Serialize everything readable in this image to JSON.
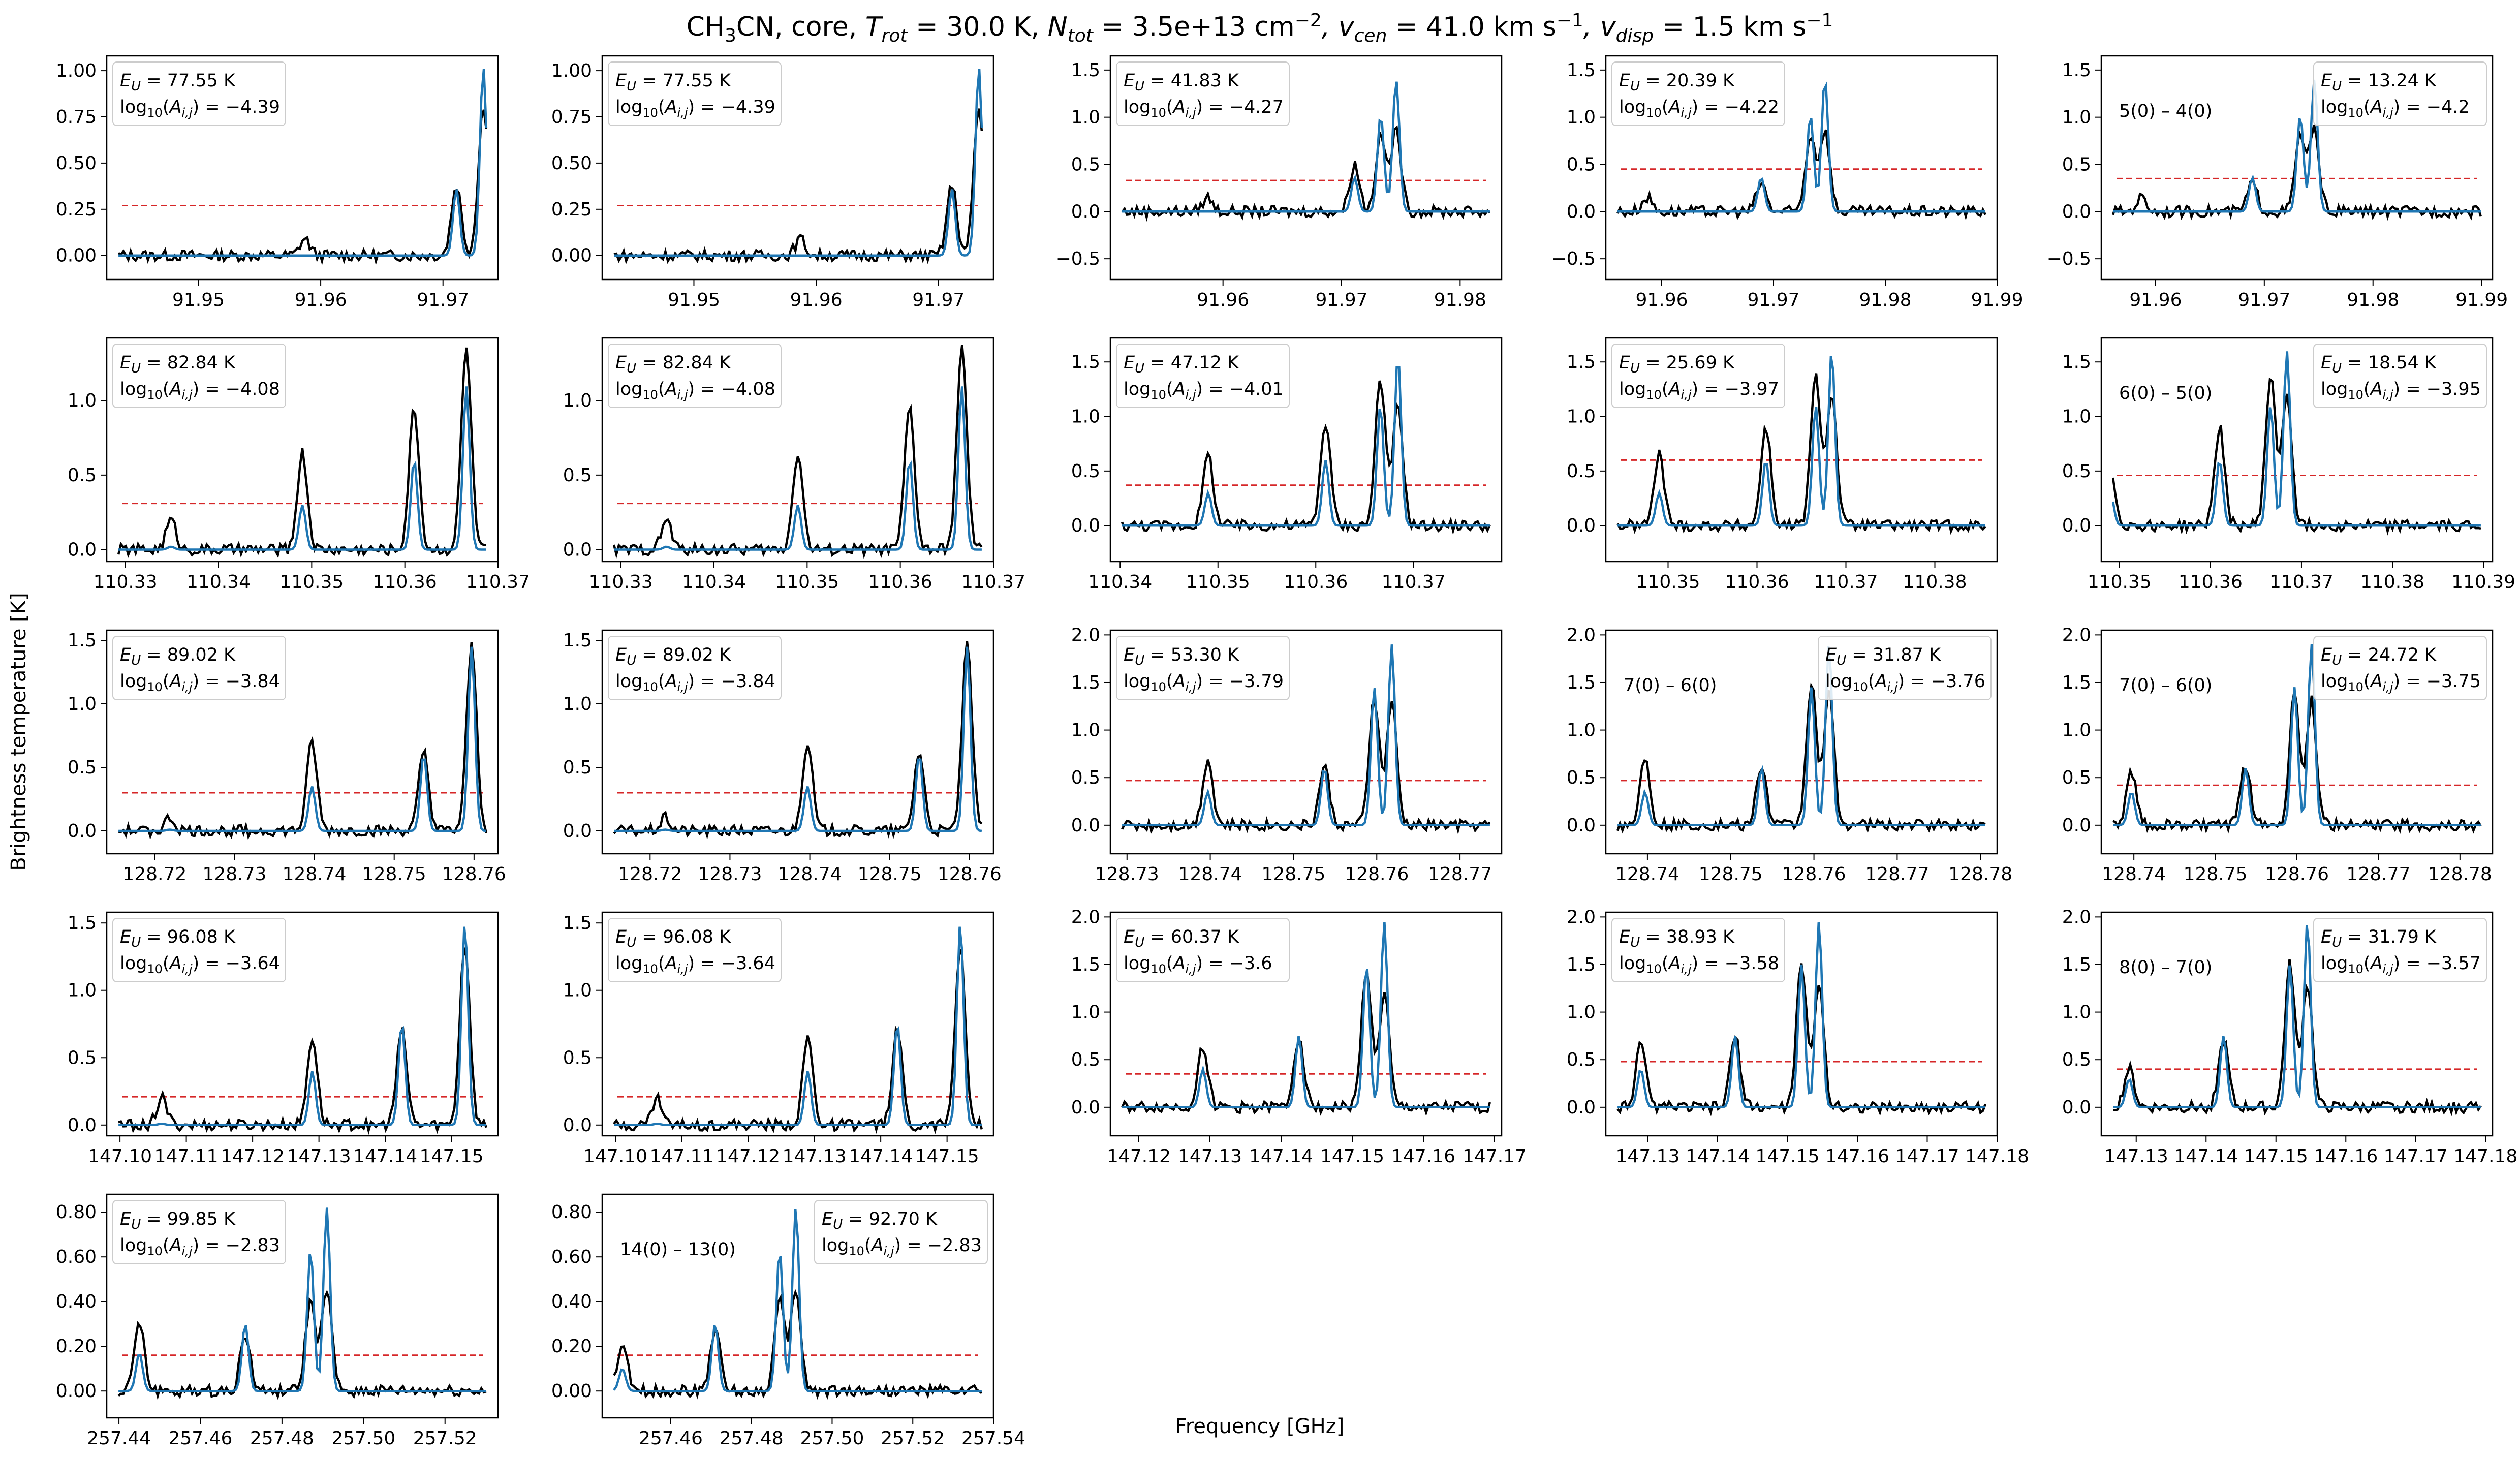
{
  "figure": {
    "title_main": "CH",
    "title_sub3": "3",
    "title_cn": "CN, core, ",
    "title_trot_T": "T",
    "title_trot_sub": "rot",
    "title_trot_val": " = 30.0 K, ",
    "title_ntot_N": "N",
    "title_ntot_sub": "tot",
    "title_ntot_val": " = 3.5e+13 cm",
    "title_ntot_exp": "−2",
    "title_vcen_v": ", v",
    "title_vcen_sub": "cen",
    "title_vcen_val": " = 41.0 km s",
    "title_vcen_exp": "−1",
    "title_vdisp_v": ", v",
    "title_vdisp_sub": "disp",
    "title_vdisp_val": " = 1.5 km s",
    "title_vdisp_exp": "−1",
    "xlabel": "Frequency [GHz]",
    "ylabel": "Brightness temperature [K]"
  },
  "colors": {
    "observed": "#000000",
    "model": "#1f77b4",
    "threshold": "#d62728"
  },
  "chart_data": [
    {
      "type": "line",
      "row": 0,
      "col": 0,
      "xlim": [
        91.9425,
        91.9745
      ],
      "xticks": [
        91.95,
        91.96,
        91.97
      ],
      "ylim": [
        -0.13,
        1.08
      ],
      "yticks": [
        0.0,
        0.25,
        0.5,
        0.75,
        1.0
      ],
      "threshold": 0.27,
      "ann_pos": "left",
      "eu": "77.55 K",
      "loga": "−4.39",
      "transition": "",
      "lines": [
        {
          "f": 91.9587,
          "a": 0.09,
          "m": 0.0
        },
        {
          "f": 91.9711,
          "a": 0.38,
          "m": 0.36
        },
        {
          "f": 91.9733,
          "a": 0.8,
          "m": 1.02
        }
      ]
    },
    {
      "type": "line",
      "row": 0,
      "col": 1,
      "xlim": [
        91.9425,
        91.9745
      ],
      "xticks": [
        91.95,
        91.96,
        91.97
      ],
      "ylim": [
        -0.13,
        1.08
      ],
      "yticks": [
        0.0,
        0.25,
        0.5,
        0.75,
        1.0
      ],
      "threshold": 0.27,
      "ann_pos": "left",
      "eu": "77.55 K",
      "loga": "−4.39",
      "transition": "",
      "lines": [
        {
          "f": 91.9587,
          "a": 0.09,
          "m": 0.0
        },
        {
          "f": 91.9711,
          "a": 0.38,
          "m": 0.36
        },
        {
          "f": 91.9733,
          "a": 0.8,
          "m": 1.02
        }
      ]
    },
    {
      "type": "line",
      "row": 0,
      "col": 2,
      "xlim": [
        91.9505,
        91.9835
      ],
      "xticks": [
        91.95,
        91.96,
        91.97,
        91.98
      ],
      "ylim": [
        -0.72,
        1.65
      ],
      "yticks": [
        -0.5,
        0.0,
        0.5,
        1.0,
        1.5
      ],
      "threshold": 0.33,
      "ann_pos": "left",
      "eu": "41.83 K",
      "loga": "−4.27",
      "transition": "",
      "lines": [
        {
          "f": 91.9587,
          "a": 0.15,
          "m": 0.0
        },
        {
          "f": 91.9711,
          "a": 0.5,
          "m": 0.36
        },
        {
          "f": 91.9733,
          "a": 0.8,
          "m": 1.02
        },
        {
          "f": 91.9746,
          "a": 0.85,
          "m": 1.4
        }
      ]
    },
    {
      "type": "line",
      "row": 0,
      "col": 3,
      "xlim": [
        91.955,
        91.99
      ],
      "xticks": [
        91.96,
        91.97,
        91.98,
        91.99
      ],
      "ylim": [
        -0.72,
        1.65
      ],
      "yticks": [
        -0.5,
        0.0,
        0.5,
        1.0,
        1.5
      ],
      "threshold": 0.45,
      "ann_pos": "left",
      "eu": "20.39 K",
      "loga": "−4.22",
      "transition": "",
      "lines": [
        {
          "f": 91.9587,
          "a": 0.15,
          "m": 0.0
        },
        {
          "f": 91.9689,
          "a": 0.3,
          "m": 0.36
        },
        {
          "f": 91.9733,
          "a": 0.8,
          "m": 1.02
        },
        {
          "f": 91.9746,
          "a": 0.85,
          "m": 1.4
        }
      ]
    },
    {
      "type": "line",
      "row": 0,
      "col": 4,
      "xlim": [
        91.955,
        91.991
      ],
      "xticks": [
        91.96,
        91.97,
        91.98,
        91.99
      ],
      "ylim": [
        -0.72,
        1.65
      ],
      "yticks": [
        -0.5,
        0.0,
        0.5,
        1.0,
        1.5
      ],
      "threshold": 0.35,
      "ann_pos": "right",
      "eu": "13.24 K",
      "loga": "−4.2",
      "transition": "5(0) – 4(0)",
      "lines": [
        {
          "f": 91.9587,
          "a": 0.15,
          "m": 0.0
        },
        {
          "f": 91.9689,
          "a": 0.3,
          "m": 0.36
        },
        {
          "f": 91.9733,
          "a": 0.8,
          "m": 1.02
        },
        {
          "f": 91.9746,
          "a": 0.85,
          "m": 1.4
        }
      ]
    },
    {
      "type": "line",
      "row": 1,
      "col": 0,
      "xlim": [
        110.328,
        110.37
      ],
      "xticks": [
        110.33,
        110.34,
        110.35,
        110.36,
        110.37
      ],
      "ylim": [
        -0.08,
        1.42
      ],
      "yticks": [
        0.0,
        0.5,
        1.0
      ],
      "threshold": 0.31,
      "ann_pos": "left",
      "eu": "82.84 K",
      "loga": "−4.08",
      "transition": "",
      "lines": [
        {
          "f": 110.3349,
          "a": 0.2,
          "m": 0.02
        },
        {
          "f": 110.349,
          "a": 0.65,
          "m": 0.3
        },
        {
          "f": 110.361,
          "a": 0.95,
          "m": 0.6
        },
        {
          "f": 110.3666,
          "a": 1.35,
          "m": 1.1
        }
      ]
    },
    {
      "type": "line",
      "row": 1,
      "col": 1,
      "xlim": [
        110.328,
        110.37
      ],
      "xticks": [
        110.33,
        110.34,
        110.35,
        110.36,
        110.37
      ],
      "ylim": [
        -0.08,
        1.42
      ],
      "yticks": [
        0.0,
        0.5,
        1.0
      ],
      "threshold": 0.31,
      "ann_pos": "left",
      "eu": "82.84 K",
      "loga": "−4.08",
      "transition": "",
      "lines": [
        {
          "f": 110.3349,
          "a": 0.2,
          "m": 0.02
        },
        {
          "f": 110.349,
          "a": 0.65,
          "m": 0.3
        },
        {
          "f": 110.361,
          "a": 0.95,
          "m": 0.6
        },
        {
          "f": 110.3666,
          "a": 1.35,
          "m": 1.1
        }
      ]
    },
    {
      "type": "line",
      "row": 1,
      "col": 2,
      "xlim": [
        110.339,
        110.379
      ],
      "xticks": [
        110.34,
        110.35,
        110.36,
        110.37,
        110.38
      ],
      "ylim": [
        -0.33,
        1.72
      ],
      "yticks": [
        0.0,
        0.5,
        1.0,
        1.5
      ],
      "threshold": 0.37,
      "ann_pos": "left",
      "eu": "47.12 K",
      "loga": "−4.01",
      "transition": "",
      "lines": [
        {
          "f": 110.349,
          "a": 0.65,
          "m": 0.3
        },
        {
          "f": 110.361,
          "a": 0.95,
          "m": 0.6
        },
        {
          "f": 110.3666,
          "a": 1.35,
          "m": 1.1
        },
        {
          "f": 110.3684,
          "a": 1.1,
          "m": 1.55
        }
      ]
    },
    {
      "type": "line",
      "row": 1,
      "col": 3,
      "xlim": [
        110.343,
        110.387
      ],
      "xticks": [
        110.35,
        110.36,
        110.37,
        110.38
      ],
      "ylim": [
        -0.33,
        1.72
      ],
      "yticks": [
        0.0,
        0.5,
        1.0,
        1.5
      ],
      "threshold": 0.6,
      "ann_pos": "left",
      "eu": "25.69 K",
      "loga": "−3.97",
      "transition": "",
      "lines": [
        {
          "f": 110.349,
          "a": 0.65,
          "m": 0.3
        },
        {
          "f": 110.361,
          "a": 0.9,
          "m": 0.6
        },
        {
          "f": 110.3666,
          "a": 1.35,
          "m": 1.1
        },
        {
          "f": 110.3684,
          "a": 1.2,
          "m": 1.6
        }
      ]
    },
    {
      "type": "line",
      "row": 1,
      "col": 4,
      "xlim": [
        110.348,
        110.391
      ],
      "xticks": [
        110.35,
        110.36,
        110.37,
        110.38,
        110.39
      ],
      "ylim": [
        -0.33,
        1.72
      ],
      "yticks": [
        0.0,
        0.5,
        1.0,
        1.5
      ],
      "threshold": 0.46,
      "ann_pos": "right",
      "eu": "18.54 K",
      "loga": "−3.95",
      "transition": "6(0) – 5(0)",
      "lines": [
        {
          "f": 110.349,
          "a": 0.5,
          "m": 0.3
        },
        {
          "f": 110.361,
          "a": 0.9,
          "m": 0.6
        },
        {
          "f": 110.3666,
          "a": 1.35,
          "m": 1.1
        },
        {
          "f": 110.3684,
          "a": 1.2,
          "m": 1.6
        }
      ]
    },
    {
      "type": "line",
      "row": 2,
      "col": 0,
      "xlim": [
        128.714,
        128.763
      ],
      "xticks": [
        128.72,
        128.73,
        128.74,
        128.75,
        128.76
      ],
      "ylim": [
        -0.18,
        1.58
      ],
      "yticks": [
        0.0,
        0.5,
        1.0,
        1.5
      ],
      "threshold": 0.3,
      "ann_pos": "left",
      "eu": "89.02 K",
      "loga": "−3.84",
      "transition": "",
      "lines": [
        {
          "f": 128.7219,
          "a": 0.1,
          "m": 0.01
        },
        {
          "f": 128.7397,
          "a": 0.7,
          "m": 0.35
        },
        {
          "f": 128.7537,
          "a": 0.62,
          "m": 0.6
        },
        {
          "f": 128.7597,
          "a": 1.45,
          "m": 1.45
        }
      ]
    },
    {
      "type": "line",
      "row": 2,
      "col": 1,
      "xlim": [
        128.714,
        128.763
      ],
      "xticks": [
        128.72,
        128.73,
        128.74,
        128.75,
        128.76
      ],
      "ylim": [
        -0.18,
        1.58
      ],
      "yticks": [
        0.0,
        0.5,
        1.0,
        1.5
      ],
      "threshold": 0.3,
      "ann_pos": "left",
      "eu": "89.02 K",
      "loga": "−3.84",
      "transition": "",
      "lines": [
        {
          "f": 128.7219,
          "a": 0.1,
          "m": 0.01
        },
        {
          "f": 128.7397,
          "a": 0.7,
          "m": 0.35
        },
        {
          "f": 128.7537,
          "a": 0.62,
          "m": 0.6
        },
        {
          "f": 128.7597,
          "a": 1.45,
          "m": 1.45
        }
      ]
    },
    {
      "type": "line",
      "row": 2,
      "col": 2,
      "xlim": [
        128.728,
        128.775
      ],
      "xticks": [
        128.73,
        128.74,
        128.75,
        128.76,
        128.77
      ],
      "ylim": [
        -0.3,
        2.05
      ],
      "yticks": [
        0.0,
        0.5,
        1.0,
        1.5,
        2.0
      ],
      "threshold": 0.47,
      "ann_pos": "left",
      "eu": "53.30 K",
      "loga": "−3.79",
      "transition": "",
      "lines": [
        {
          "f": 128.7397,
          "a": 0.7,
          "m": 0.35
        },
        {
          "f": 128.7537,
          "a": 0.62,
          "m": 0.6
        },
        {
          "f": 128.7597,
          "a": 1.35,
          "m": 1.45
        },
        {
          "f": 128.7618,
          "a": 1.3,
          "m": 1.9
        }
      ]
    },
    {
      "type": "line",
      "row": 2,
      "col": 3,
      "xlim": [
        128.735,
        128.782
      ],
      "xticks": [
        128.74,
        128.75,
        128.76,
        128.77,
        128.78
      ],
      "ylim": [
        -0.3,
        2.05
      ],
      "yticks": [
        0.0,
        0.5,
        1.0,
        1.5,
        2.0
      ],
      "threshold": 0.47,
      "ann_pos": "right",
      "eu": "31.87 K",
      "loga": "−3.76",
      "transition": "7(0) – 6(0)",
      "lines": [
        {
          "f": 128.7397,
          "a": 0.7,
          "m": 0.35
        },
        {
          "f": 128.7537,
          "a": 0.62,
          "m": 0.6
        },
        {
          "f": 128.7597,
          "a": 1.5,
          "m": 1.45
        },
        {
          "f": 128.7618,
          "a": 1.4,
          "m": 1.9
        }
      ]
    },
    {
      "type": "line",
      "row": 2,
      "col": 4,
      "xlim": [
        128.736,
        128.784
      ],
      "xticks": [
        128.74,
        128.75,
        128.76,
        128.77,
        128.78
      ],
      "ylim": [
        -0.3,
        2.05
      ],
      "yticks": [
        0.0,
        0.5,
        1.0,
        1.5,
        2.0
      ],
      "threshold": 0.42,
      "ann_pos": "right",
      "eu": "24.72 K",
      "loga": "−3.75",
      "transition": "7(0) – 6(0)",
      "lines": [
        {
          "f": 128.7397,
          "a": 0.55,
          "m": 0.35
        },
        {
          "f": 128.7537,
          "a": 0.62,
          "m": 0.6
        },
        {
          "f": 128.7597,
          "a": 1.4,
          "m": 1.45
        },
        {
          "f": 128.7618,
          "a": 1.3,
          "m": 1.9
        }
      ]
    },
    {
      "type": "line",
      "row": 3,
      "col": 0,
      "xlim": [
        147.098,
        147.157
      ],
      "xticks": [
        147.1,
        147.11,
        147.12,
        147.13,
        147.14,
        147.15
      ],
      "ylim": [
        -0.08,
        1.58
      ],
      "yticks": [
        0.0,
        0.5,
        1.0,
        1.5
      ],
      "threshold": 0.21,
      "ann_pos": "left",
      "eu": "96.08 K",
      "loga": "−3.64",
      "transition": "",
      "lines": [
        {
          "f": 147.1063,
          "a": 0.2,
          "m": 0.01
        },
        {
          "f": 147.129,
          "a": 0.65,
          "m": 0.4
        },
        {
          "f": 147.1425,
          "a": 0.7,
          "m": 0.75
        },
        {
          "f": 147.152,
          "a": 1.35,
          "m": 1.5
        }
      ]
    },
    {
      "type": "line",
      "row": 3,
      "col": 1,
      "xlim": [
        147.098,
        147.157
      ],
      "xticks": [
        147.1,
        147.11,
        147.12,
        147.13,
        147.14,
        147.15
      ],
      "ylim": [
        -0.08,
        1.58
      ],
      "yticks": [
        0.0,
        0.5,
        1.0,
        1.5
      ],
      "threshold": 0.21,
      "ann_pos": "left",
      "eu": "96.08 K",
      "loga": "−3.64",
      "transition": "",
      "lines": [
        {
          "f": 147.1063,
          "a": 0.2,
          "m": 0.01
        },
        {
          "f": 147.129,
          "a": 0.65,
          "m": 0.4
        },
        {
          "f": 147.1425,
          "a": 0.7,
          "m": 0.75
        },
        {
          "f": 147.152,
          "a": 1.35,
          "m": 1.5
        }
      ]
    },
    {
      "type": "line",
      "row": 3,
      "col": 2,
      "xlim": [
        147.116,
        147.171
      ],
      "xticks": [
        147.12,
        147.13,
        147.14,
        147.15,
        147.16,
        147.17
      ],
      "ylim": [
        -0.3,
        2.05
      ],
      "yticks": [
        0.0,
        0.5,
        1.0,
        1.5,
        2.0
      ],
      "threshold": 0.35,
      "ann_pos": "left",
      "eu": "60.37 K",
      "loga": "−3.6",
      "transition": "",
      "lines": [
        {
          "f": 147.129,
          "a": 0.65,
          "m": 0.4
        },
        {
          "f": 147.1425,
          "a": 0.75,
          "m": 0.75
        },
        {
          "f": 147.152,
          "a": 1.45,
          "m": 1.5
        },
        {
          "f": 147.1545,
          "a": 1.2,
          "m": 1.95
        }
      ]
    },
    {
      "type": "line",
      "row": 3,
      "col": 3,
      "xlim": [
        147.124,
        147.18
      ],
      "xticks": [
        147.13,
        147.14,
        147.15,
        147.16,
        147.17,
        147.18
      ],
      "ylim": [
        -0.3,
        2.05
      ],
      "yticks": [
        0.0,
        0.5,
        1.0,
        1.5,
        2.0
      ],
      "threshold": 0.48,
      "ann_pos": "left",
      "eu": "38.93 K",
      "loga": "−3.58",
      "transition": "",
      "lines": [
        {
          "f": 147.129,
          "a": 0.65,
          "m": 0.4
        },
        {
          "f": 147.1425,
          "a": 0.75,
          "m": 0.75
        },
        {
          "f": 147.152,
          "a": 1.5,
          "m": 1.5
        },
        {
          "f": 147.1545,
          "a": 1.3,
          "m": 1.95
        }
      ]
    },
    {
      "type": "line",
      "row": 3,
      "col": 4,
      "xlim": [
        147.125,
        147.181
      ],
      "xticks": [
        147.13,
        147.14,
        147.15,
        147.16,
        147.17,
        147.18
      ],
      "ylim": [
        -0.3,
        2.05
      ],
      "yticks": [
        0.0,
        0.5,
        1.0,
        1.5,
        2.0
      ],
      "threshold": 0.4,
      "ann_pos": "right",
      "eu": "31.79 K",
      "loga": "−3.57",
      "transition": "8(0) – 7(0)",
      "lines": [
        {
          "f": 147.129,
          "a": 0.4,
          "m": 0.3
        },
        {
          "f": 147.1425,
          "a": 0.7,
          "m": 0.75
        },
        {
          "f": 147.152,
          "a": 1.5,
          "m": 1.5
        },
        {
          "f": 147.1545,
          "a": 1.3,
          "m": 1.95
        }
      ]
    },
    {
      "type": "line",
      "row": 4,
      "col": 0,
      "xlim": [
        257.437,
        257.533
      ],
      "xticks": [
        257.44,
        257.46,
        257.48,
        257.5,
        257.52
      ],
      "ylim": [
        -0.12,
        0.88
      ],
      "yticks": [
        0.0,
        0.2,
        0.4,
        0.6,
        0.8
      ],
      "threshold": 0.16,
      "ann_pos": "left",
      "eu": "99.85 K",
      "loga": "−2.83",
      "transition": "",
      "lines": [
        {
          "f": 257.445,
          "a": 0.3,
          "m": 0.17
        },
        {
          "f": 257.471,
          "a": 0.25,
          "m": 0.3
        },
        {
          "f": 257.487,
          "a": 0.4,
          "m": 0.63
        },
        {
          "f": 257.491,
          "a": 0.45,
          "m": 0.82
        }
      ]
    },
    {
      "type": "line",
      "row": 4,
      "col": 1,
      "xlim": [
        257.443,
        257.54
      ],
      "xticks": [
        257.46,
        257.48,
        257.5,
        257.52,
        257.54
      ],
      "ylim": [
        -0.12,
        0.88
      ],
      "yticks": [
        0.0,
        0.2,
        0.4,
        0.6,
        0.8
      ],
      "threshold": 0.16,
      "ann_pos": "right",
      "eu": "92.70 K",
      "loga": "−2.83",
      "transition": "14(0) – 13(0)",
      "lines": [
        {
          "f": 257.448,
          "a": 0.2,
          "m": 0.1
        },
        {
          "f": 257.471,
          "a": 0.28,
          "m": 0.3
        },
        {
          "f": 257.487,
          "a": 0.4,
          "m": 0.63
        },
        {
          "f": 257.491,
          "a": 0.45,
          "m": 0.82
        }
      ]
    }
  ]
}
